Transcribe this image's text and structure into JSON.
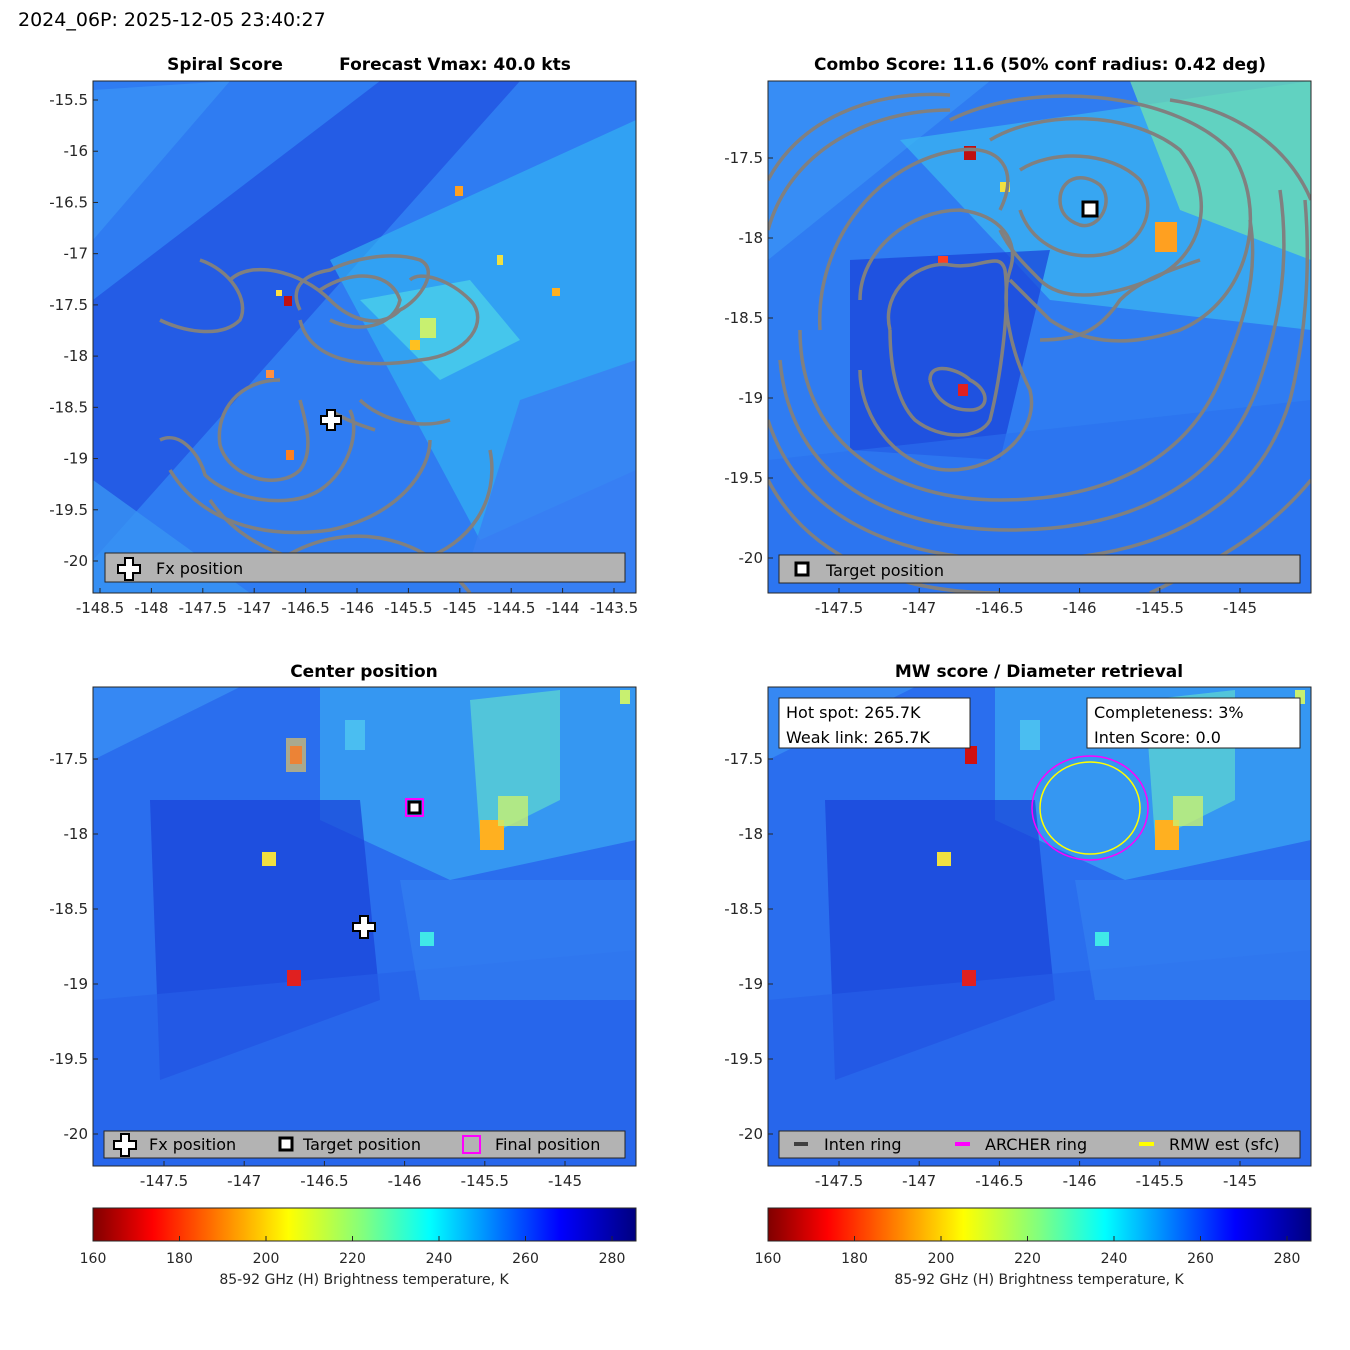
{
  "figure_title": "2024_06P: 2025-12-05 23:40:27",
  "panels": {
    "spiral": {
      "title_left": "Spiral Score",
      "title_right": "Forecast Vmax: 40.0 kts",
      "xticks": [
        "-148.5",
        "-148",
        "-147.5",
        "-147",
        "-146.5",
        "-146",
        "-145.5",
        "-145",
        "-144.5",
        "-144",
        "-143.5"
      ],
      "yticks": [
        "-15.5",
        "-16",
        "-16.5",
        "-17",
        "-17.5",
        "-18",
        "-18.5",
        "-19",
        "-19.5",
        "-20"
      ],
      "legend": [
        "Fx position"
      ]
    },
    "combo": {
      "title": "Combo Score: 11.6  (50% conf radius: 0.42 deg)",
      "xticks": [
        "-147.5",
        "-147",
        "-146.5",
        "-146",
        "-145.5",
        "-145"
      ],
      "yticks": [
        "-17.5",
        "-18",
        "-18.5",
        "-19",
        "-19.5",
        "-20"
      ],
      "legend": [
        "Target position"
      ]
    },
    "center": {
      "title": "Center position",
      "xticks": [
        "-147.5",
        "-147",
        "-146.5",
        "-146",
        "-145.5",
        "-145"
      ],
      "yticks": [
        "-17.5",
        "-18",
        "-18.5",
        "-19",
        "-19.5",
        "-20"
      ],
      "legend": [
        "Fx position",
        "Target position",
        "Final position"
      ]
    },
    "mw": {
      "title": "MW score / Diameter retrieval",
      "xticks": [
        "-147.5",
        "-147",
        "-146.5",
        "-146",
        "-145.5",
        "-145"
      ],
      "yticks": [
        "-17.5",
        "-18",
        "-18.5",
        "-19",
        "-19.5",
        "-20"
      ],
      "legend": [
        "Inten ring",
        "ARCHER ring",
        "RMW est (sfc)"
      ],
      "box_left": [
        "Hot spot: 265.7K",
        "Weak link: 265.7K"
      ],
      "box_right": [
        "Completeness: 3%",
        "Inten Score: 0.0"
      ]
    }
  },
  "colorbar": {
    "ticks": [
      "160",
      "180",
      "200",
      "220",
      "240",
      "260",
      "280"
    ],
    "label": "85-92 GHz (H) Brightness temperature, K"
  },
  "colors": {
    "contour": "#808080",
    "archer_ring": "#ff00ff",
    "rmw_ring": "#ffff00",
    "inten_ring": "#404040",
    "legend_bg": "#b3b3b3"
  },
  "chart_data": [
    {
      "type": "heatmap",
      "panel": "Spiral Score",
      "title": "Spiral Score    Forecast Vmax: 40.0 kts",
      "xlim": [
        -148.6,
        -143.4
      ],
      "ylim": [
        -20.3,
        -15.2
      ],
      "fx_position": {
        "lon": -146.25,
        "lat": -18.63
      },
      "colormap": "jet (reversed)",
      "clim": [
        160,
        285
      ]
    },
    {
      "type": "heatmap",
      "panel": "Combo Score",
      "title": "Combo Score: 11.6  (50% conf radius: 0.42 deg)",
      "xlim": [
        -147.95,
        -144.55
      ],
      "ylim": [
        -20.2,
        -17.0
      ],
      "target_position": {
        "lon": -145.93,
        "lat": -17.82
      },
      "clim": [
        160,
        285
      ]
    },
    {
      "type": "heatmap",
      "panel": "Center position",
      "title": "Center position",
      "xlim": [
        -147.95,
        -144.55
      ],
      "ylim": [
        -20.2,
        -17.0
      ],
      "fx_position": {
        "lon": -146.25,
        "lat": -18.63
      },
      "target_position": {
        "lon": -145.93,
        "lat": -17.82
      },
      "final_position": {
        "lon": -145.93,
        "lat": -17.82
      },
      "hot_spots": [
        {
          "lon": -146.7,
          "lat": -17.47,
          "tb": 170
        },
        {
          "lon": -146.7,
          "lat": -18.97,
          "tb": 190
        },
        {
          "lon": -146.85,
          "lat": -18.17,
          "tb": 210
        },
        {
          "lon": -145.85,
          "lat": -18.72,
          "tb": 225
        },
        {
          "lon": -145.55,
          "lat": -18.0,
          "tb": 200
        }
      ],
      "clim": [
        160,
        285
      ]
    },
    {
      "type": "heatmap",
      "panel": "MW score / Diameter retrieval",
      "title": "MW score / Diameter retrieval",
      "xlim": [
        -147.95,
        -144.55
      ],
      "ylim": [
        -20.2,
        -17.0
      ],
      "rings": [
        {
          "name": "ARCHER ring",
          "lon": -145.93,
          "lat": -17.82,
          "radius_deg": 0.37
        },
        {
          "name": "RMW est (sfc)",
          "lon": -145.93,
          "lat": -17.82,
          "radius_deg": 0.32
        }
      ],
      "clim": [
        160,
        285
      ]
    }
  ]
}
